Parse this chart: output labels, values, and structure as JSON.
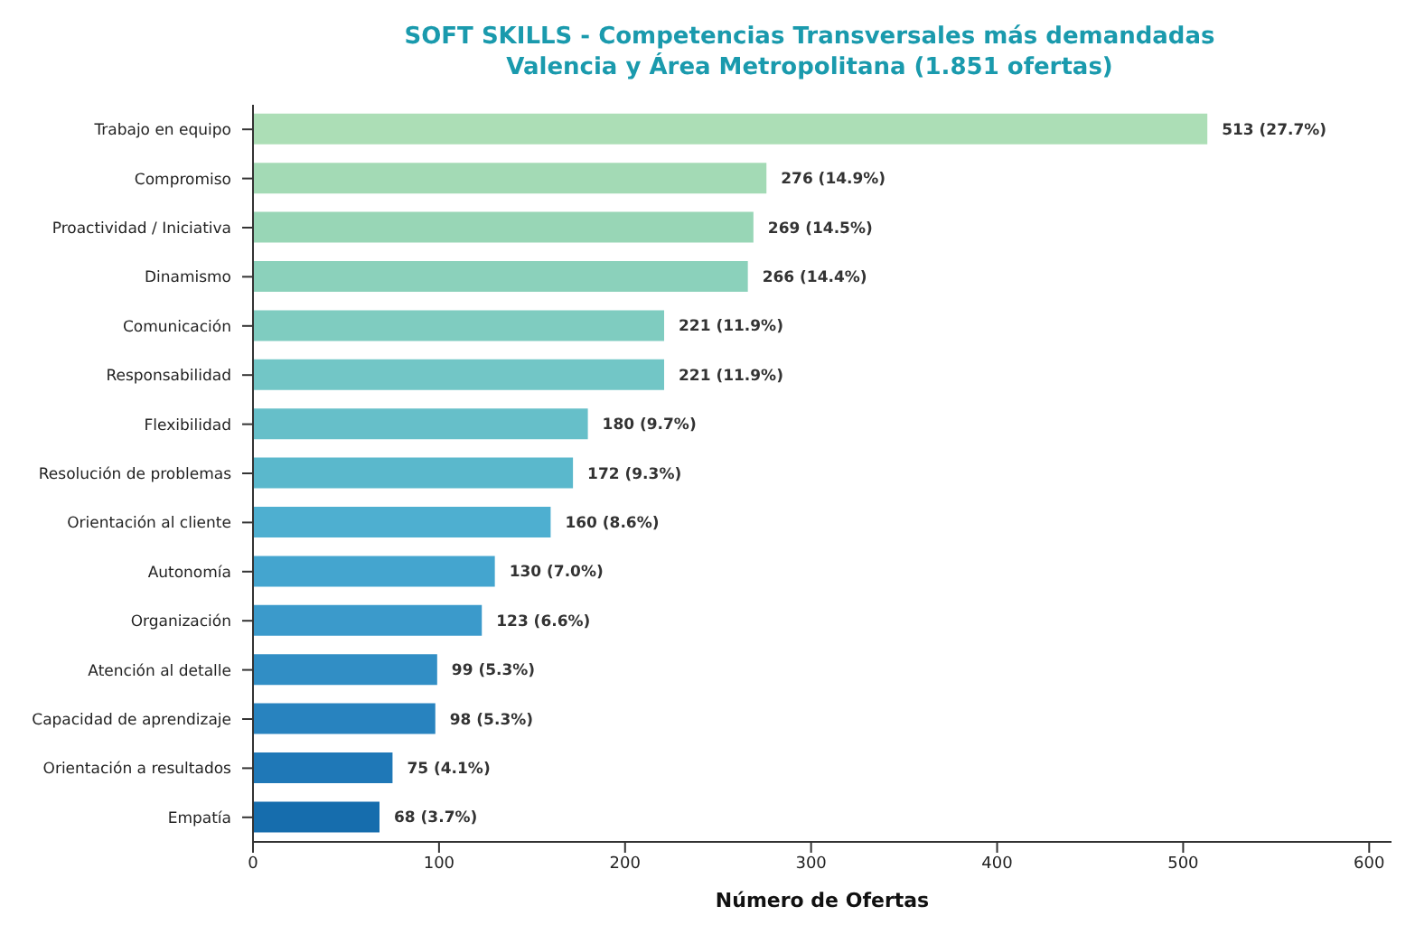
{
  "chart_data": {
    "type": "bar",
    "orientation": "horizontal",
    "title": "SOFT SKILLS - Competencias Transversales más demandadas",
    "subtitle": "Valencia y Área Metropolitana (1.851 ofertas)",
    "xlabel": "Número de Ofertas",
    "categories": [
      "Trabajo en equipo",
      "Compromiso",
      "Proactividad / Iniciativa",
      "Dinamismo",
      "Comunicación",
      "Responsabilidad",
      "Flexibilidad",
      "Resolución de problemas",
      "Orientación al cliente",
      "Autonomía",
      "Organización",
      "Atención al detalle",
      "Capacidad de aprendizaje",
      "Orientación a resultados",
      "Empatía"
    ],
    "values": [
      513,
      276,
      269,
      266,
      221,
      221,
      180,
      172,
      160,
      130,
      123,
      99,
      98,
      75,
      68
    ],
    "value_labels": [
      "513 (27.7%)",
      "276 (14.9%)",
      "269 (14.5%)",
      "266 (14.4%)",
      "221 (11.9%)",
      "221 (11.9%)",
      "180 (9.7%)",
      "172 (9.3%)",
      "160 (8.6%)",
      "130 (7.0%)",
      "123 (6.6%)",
      "99 (5.3%)",
      "98 (5.3%)",
      "75 (4.1%)",
      "68 (3.7%)"
    ],
    "colors": [
      "#acdeb6",
      "#a3dab5",
      "#98d6b6",
      "#8bd1bb",
      "#7fccc0",
      "#72c6c6",
      "#66bfc9",
      "#5ab8cc",
      "#4eafd0",
      "#44a5cf",
      "#3b9acb",
      "#318ec5",
      "#2883bf",
      "#1f78b7",
      "#166dad"
    ],
    "xlim": [
      0,
      612
    ],
    "xticks": [
      0,
      100,
      200,
      300,
      400,
      500,
      600
    ],
    "grid": false
  }
}
